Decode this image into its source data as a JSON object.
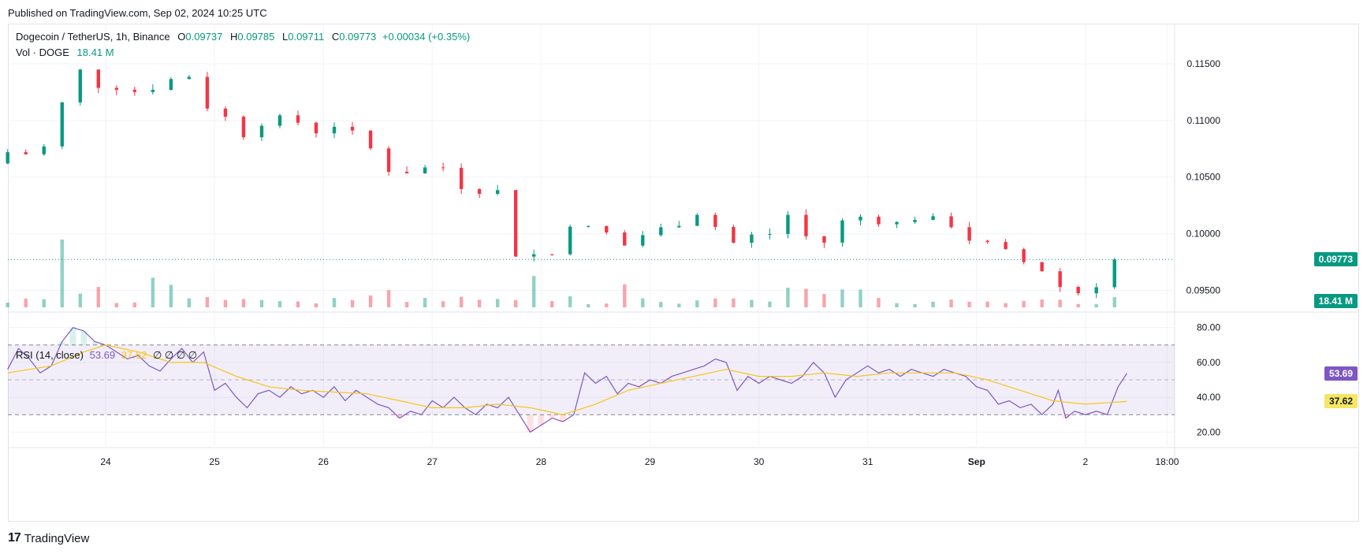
{
  "header": {
    "published": "Published on TradingView.com, Sep 02, 2024 10:25 UTC"
  },
  "legend": {
    "symbol": "Dogecoin / TetherUS, 1h, Binance",
    "open_label": "O",
    "open": "0.09737",
    "high_label": "H",
    "high": "0.09785",
    "low_label": "L",
    "low": "0.09711",
    "close_label": "C",
    "close": "0.09773",
    "change": "+0.00034 (+0.35%)",
    "volume_label": "Vol · DOGE",
    "volume": "18.41 M"
  },
  "rsi_legend": {
    "label": "RSI (14, close)",
    "rsi": "53.69",
    "ma": "37.62",
    "extra": "∅ ∅ ∅ ∅"
  },
  "badges": {
    "price": "0.09773",
    "volume": "18.41 M",
    "rsi": "53.69",
    "rsi_ma": "37.62"
  },
  "footer": {
    "logo": "17",
    "brand": "TradingView"
  },
  "colors": {
    "up": "#089981",
    "down": "#f23645",
    "rsi": "#7e57c2",
    "rsi_ma": "#f5c518",
    "band": "#7e57c2"
  },
  "chart_data": [
    {
      "type": "candlestick",
      "title": "Dogecoin / TetherUS, 1h, Binance",
      "interval": "1h",
      "ylim": [
        0.0935,
        0.1175
      ],
      "yticks": [
        "0.11500",
        "0.11000",
        "0.10500",
        "0.10000",
        "0.09500"
      ],
      "ytick_values": [
        0.115,
        0.11,
        0.105,
        0.1,
        0.095
      ],
      "xtick_labels": [
        "24",
        "25",
        "26",
        "27",
        "28",
        "29",
        "30",
        "31",
        "Sep",
        "2",
        "18:00"
      ],
      "xtick_days": [
        1,
        2,
        3,
        4,
        5,
        6,
        7,
        8,
        9,
        10,
        10.75
      ],
      "x_start_day": 0.1,
      "x_end_day": 10.5,
      "last_price": 0.09773,
      "last_price_line": "dotted",
      "price_path": [
        [
          0.1,
          0.1062
        ],
        [
          0.3,
          0.1074
        ],
        [
          0.45,
          0.107
        ],
        [
          0.55,
          0.1063
        ],
        [
          0.65,
          0.109
        ],
        [
          0.75,
          0.1112
        ],
        [
          0.85,
          0.113
        ],
        [
          0.92,
          0.1145
        ],
        [
          1.0,
          0.1138
        ],
        [
          1.15,
          0.1127
        ],
        [
          1.3,
          0.113
        ],
        [
          1.45,
          0.1125
        ],
        [
          1.55,
          0.1138
        ],
        [
          1.65,
          0.112
        ],
        [
          1.75,
          0.1132
        ],
        [
          1.82,
          0.115
        ],
        [
          1.9,
          0.1145
        ],
        [
          2.0,
          0.1128
        ],
        [
          2.1,
          0.1112
        ],
        [
          2.2,
          0.1108
        ],
        [
          2.3,
          0.11
        ],
        [
          2.4,
          0.1086
        ],
        [
          2.5,
          0.109
        ],
        [
          2.6,
          0.1098
        ],
        [
          2.75,
          0.1102
        ],
        [
          2.9,
          0.11
        ],
        [
          3.0,
          0.1095
        ],
        [
          3.1,
          0.109
        ],
        [
          3.2,
          0.1098
        ],
        [
          3.35,
          0.1093
        ],
        [
          3.5,
          0.1085
        ],
        [
          3.6,
          0.1075
        ],
        [
          3.7,
          0.1065
        ],
        [
          3.8,
          0.1052
        ],
        [
          3.95,
          0.1055
        ],
        [
          4.1,
          0.1058
        ],
        [
          4.25,
          0.106
        ],
        [
          4.35,
          0.105
        ],
        [
          4.45,
          0.104
        ],
        [
          4.6,
          0.1038
        ],
        [
          4.75,
          0.1042
        ],
        [
          4.85,
          0.1015
        ],
        [
          4.92,
          0.0982
        ],
        [
          5.05,
          0.098
        ],
        [
          5.2,
          0.0985
        ],
        [
          5.35,
          0.0978
        ],
        [
          5.45,
          0.1015
        ],
        [
          5.6,
          0.1005
        ],
        [
          5.7,
          0.0985
        ],
        [
          5.8,
          0.1008
        ],
        [
          5.9,
          0.0988
        ],
        [
          6.0,
          0.0993
        ],
        [
          6.15,
          0.1002
        ],
        [
          6.3,
          0.1005
        ],
        [
          6.45,
          0.101
        ],
        [
          6.55,
          0.1017
        ],
        [
          6.65,
          0.102
        ],
        [
          6.75,
          0.101
        ],
        [
          6.85,
          0.0988
        ],
        [
          7.0,
          0.0995
        ],
        [
          7.15,
          0.1
        ],
        [
          7.25,
          0.0998
        ],
        [
          7.35,
          0.101
        ],
        [
          7.45,
          0.1018
        ],
        [
          7.55,
          0.101
        ],
        [
          7.65,
          0.0985
        ],
        [
          7.75,
          0.099
        ],
        [
          7.85,
          0.1005
        ],
        [
          7.95,
          0.1012
        ],
        [
          8.0,
          0.102
        ],
        [
          8.1,
          0.1015
        ],
        [
          8.2,
          0.1013
        ],
        [
          8.3,
          0.101
        ],
        [
          8.4,
          0.1008
        ],
        [
          8.5,
          0.1012
        ],
        [
          8.6,
          0.1014
        ],
        [
          8.7,
          0.1012
        ],
        [
          8.8,
          0.1013
        ],
        [
          8.9,
          0.101
        ],
        [
          9.0,
          0.1003
        ],
        [
          9.1,
          0.0995
        ],
        [
          9.2,
          0.0988
        ],
        [
          9.3,
          0.0992
        ],
        [
          9.4,
          0.0985
        ],
        [
          9.5,
          0.0982
        ],
        [
          9.6,
          0.0975
        ],
        [
          9.7,
          0.0988
        ],
        [
          9.75,
          0.0975
        ],
        [
          9.82,
          0.0945
        ],
        [
          9.9,
          0.0955
        ],
        [
          10.0,
          0.095
        ],
        [
          10.1,
          0.0948
        ],
        [
          10.2,
          0.0945
        ],
        [
          10.3,
          0.096
        ],
        [
          10.38,
          0.0977
        ]
      ]
    },
    {
      "type": "bar",
      "title": "Vol · DOGE",
      "last_value": "18.41 M",
      "spikes": [
        [
          0.55,
          6.2
        ],
        [
          0.65,
          3.2
        ],
        [
          1.5,
          6.4
        ],
        [
          1.6,
          2.8
        ],
        [
          4.9,
          3.5
        ],
        [
          4.92,
          2.2
        ],
        [
          5.7,
          2.9
        ],
        [
          7.6,
          2.0
        ],
        [
          8.0,
          2.3
        ],
        [
          9.8,
          2.0
        ]
      ]
    },
    {
      "type": "line",
      "title": "RSI (14, close)",
      "ylim": [
        12,
        88
      ],
      "yticks": [
        "80.00",
        "60.00",
        "40.00",
        "20.00"
      ],
      "ytick_values": [
        80,
        60,
        40,
        20
      ],
      "upper_band": 70,
      "middle_band": 50,
      "lower_band": 30,
      "series": [
        {
          "name": "RSI",
          "points": [
            [
              0.1,
              56
            ],
            [
              0.2,
              68
            ],
            [
              0.3,
              62
            ],
            [
              0.4,
              54
            ],
            [
              0.5,
              58
            ],
            [
              0.6,
              72
            ],
            [
              0.7,
              80
            ],
            [
              0.8,
              78
            ],
            [
              0.9,
              72
            ],
            [
              1.0,
              70
            ],
            [
              1.1,
              66
            ],
            [
              1.2,
              62
            ],
            [
              1.3,
              64
            ],
            [
              1.4,
              58
            ],
            [
              1.5,
              55
            ],
            [
              1.6,
              62
            ],
            [
              1.7,
              68
            ],
            [
              1.8,
              60
            ],
            [
              1.9,
              66
            ],
            [
              2.0,
              44
            ],
            [
              2.1,
              48
            ],
            [
              2.2,
              40
            ],
            [
              2.3,
              34
            ],
            [
              2.4,
              42
            ],
            [
              2.5,
              44
            ],
            [
              2.6,
              40
            ],
            [
              2.7,
              46
            ],
            [
              2.8,
              42
            ],
            [
              2.9,
              44
            ],
            [
              3.0,
              40
            ],
            [
              3.1,
              46
            ],
            [
              3.2,
              38
            ],
            [
              3.3,
              44
            ],
            [
              3.4,
              40
            ],
            [
              3.5,
              36
            ],
            [
              3.6,
              34
            ],
            [
              3.7,
              28
            ],
            [
              3.8,
              32
            ],
            [
              3.9,
              30
            ],
            [
              4.0,
              38
            ],
            [
              4.1,
              34
            ],
            [
              4.2,
              40
            ],
            [
              4.3,
              34
            ],
            [
              4.4,
              30
            ],
            [
              4.5,
              36
            ],
            [
              4.6,
              34
            ],
            [
              4.7,
              40
            ],
            [
              4.8,
              30
            ],
            [
              4.9,
              20
            ],
            [
              5.0,
              24
            ],
            [
              5.1,
              28
            ],
            [
              5.2,
              26
            ],
            [
              5.3,
              30
            ],
            [
              5.4,
              54
            ],
            [
              5.5,
              48
            ],
            [
              5.6,
              52
            ],
            [
              5.7,
              42
            ],
            [
              5.8,
              48
            ],
            [
              5.9,
              46
            ],
            [
              6.0,
              50
            ],
            [
              6.1,
              48
            ],
            [
              6.2,
              52
            ],
            [
              6.3,
              54
            ],
            [
              6.4,
              56
            ],
            [
              6.5,
              58
            ],
            [
              6.6,
              62
            ],
            [
              6.7,
              60
            ],
            [
              6.8,
              44
            ],
            [
              6.9,
              52
            ],
            [
              7.0,
              48
            ],
            [
              7.1,
              52
            ],
            [
              7.2,
              50
            ],
            [
              7.3,
              48
            ],
            [
              7.4,
              52
            ],
            [
              7.5,
              60
            ],
            [
              7.6,
              54
            ],
            [
              7.7,
              40
            ],
            [
              7.8,
              50
            ],
            [
              7.9,
              54
            ],
            [
              8.0,
              58
            ],
            [
              8.1,
              54
            ],
            [
              8.2,
              56
            ],
            [
              8.3,
              52
            ],
            [
              8.4,
              56
            ],
            [
              8.5,
              54
            ],
            [
              8.6,
              52
            ],
            [
              8.7,
              56
            ],
            [
              8.8,
              54
            ],
            [
              8.9,
              52
            ],
            [
              9.0,
              46
            ],
            [
              9.1,
              44
            ],
            [
              9.2,
              36
            ],
            [
              9.3,
              38
            ],
            [
              9.4,
              34
            ],
            [
              9.5,
              36
            ],
            [
              9.6,
              30
            ],
            [
              9.7,
              36
            ],
            [
              9.75,
              44
            ],
            [
              9.82,
              28
            ],
            [
              9.9,
              32
            ],
            [
              10.0,
              30
            ],
            [
              10.1,
              32
            ],
            [
              10.2,
              30
            ],
            [
              10.3,
              46
            ],
            [
              10.38,
              53.69
            ]
          ]
        },
        {
          "name": "RSI-based MA",
          "points": [
            [
              0.1,
              54
            ],
            [
              0.5,
              58
            ],
            [
              0.8,
              66
            ],
            [
              1.0,
              70
            ],
            [
              1.3,
              66
            ],
            [
              1.6,
              60
            ],
            [
              1.9,
              60
            ],
            [
              2.2,
              52
            ],
            [
              2.5,
              46
            ],
            [
              2.8,
              44
            ],
            [
              3.1,
              43
            ],
            [
              3.4,
              42
            ],
            [
              3.7,
              38
            ],
            [
              4.0,
              34
            ],
            [
              4.3,
              34
            ],
            [
              4.6,
              36
            ],
            [
              4.9,
              34
            ],
            [
              5.2,
              30
            ],
            [
              5.5,
              36
            ],
            [
              5.8,
              44
            ],
            [
              6.1,
              48
            ],
            [
              6.4,
              52
            ],
            [
              6.7,
              56
            ],
            [
              7.0,
              52
            ],
            [
              7.3,
              52
            ],
            [
              7.6,
              54
            ],
            [
              7.9,
              52
            ],
            [
              8.2,
              54
            ],
            [
              8.5,
              54
            ],
            [
              8.8,
              54
            ],
            [
              9.1,
              50
            ],
            [
              9.4,
              44
            ],
            [
              9.7,
              38
            ],
            [
              10.0,
              36
            ],
            [
              10.38,
              37.62
            ]
          ]
        }
      ]
    }
  ]
}
